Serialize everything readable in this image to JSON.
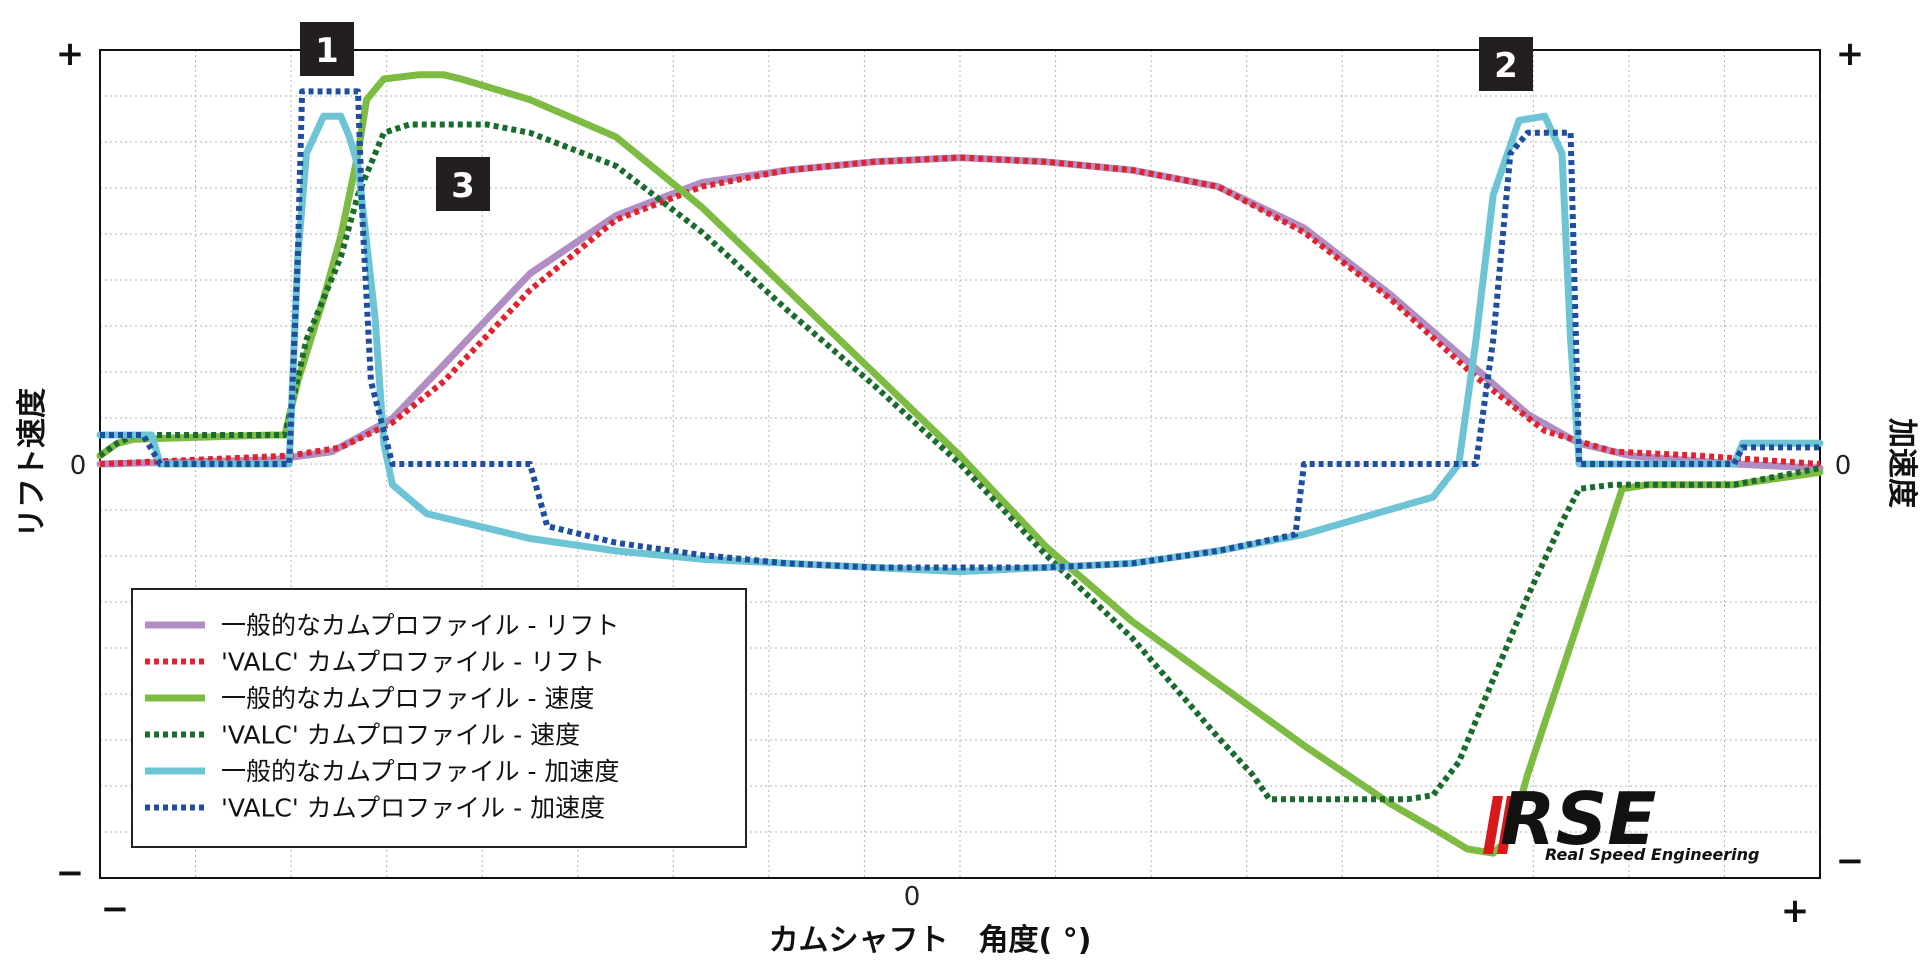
{
  "chart_data": {
    "type": "line",
    "xlabel": "カムシャフト　角度( °)",
    "ylabel_left": "リフト速度",
    "ylabel_right": "加速度",
    "x_ticks": [
      "0"
    ],
    "x_minus": "−",
    "x_plus": "+",
    "y_left_ticks": {
      "top": "+",
      "zero": "0",
      "bottom": "−"
    },
    "y_right_ticks": {
      "top": "+",
      "zero": "0",
      "bottom": "−"
    },
    "xlim": [
      -1,
      1
    ],
    "ylim": [
      -1,
      1
    ],
    "grid": true,
    "legend_position": "bottom-left",
    "annotations": [
      "1",
      "2",
      "3"
    ],
    "series": [
      {
        "name": "一般的なカムプロファイル - リフト",
        "color": "#b08ec4",
        "style": "solid",
        "points": [
          [
            -1,
            0.0
          ],
          [
            -0.8,
            0.01
          ],
          [
            -0.73,
            0.03
          ],
          [
            -0.66,
            0.11
          ],
          [
            -0.6,
            0.24
          ],
          [
            -0.5,
            0.46
          ],
          [
            -0.4,
            0.6
          ],
          [
            -0.3,
            0.68
          ],
          [
            -0.2,
            0.71
          ],
          [
            -0.1,
            0.73
          ],
          [
            0,
            0.74
          ],
          [
            0.1,
            0.73
          ],
          [
            0.2,
            0.71
          ],
          [
            0.3,
            0.67
          ],
          [
            0.4,
            0.57
          ],
          [
            0.5,
            0.41
          ],
          [
            0.6,
            0.23
          ],
          [
            0.66,
            0.12
          ],
          [
            0.72,
            0.05
          ],
          [
            0.78,
            0.02
          ],
          [
            0.9,
            0.0
          ],
          [
            1,
            -0.01
          ]
        ]
      },
      {
        "name": "'VALC' カムプロファイル - リフト",
        "color": "#e0232f",
        "style": "dotted",
        "points": [
          [
            -1,
            0.0
          ],
          [
            -0.78,
            0.02
          ],
          [
            -0.72,
            0.04
          ],
          [
            -0.66,
            0.1
          ],
          [
            -0.6,
            0.2
          ],
          [
            -0.5,
            0.42
          ],
          [
            -0.4,
            0.59
          ],
          [
            -0.3,
            0.67
          ],
          [
            -0.2,
            0.71
          ],
          [
            -0.1,
            0.73
          ],
          [
            0,
            0.74
          ],
          [
            0.1,
            0.73
          ],
          [
            0.2,
            0.71
          ],
          [
            0.3,
            0.67
          ],
          [
            0.4,
            0.56
          ],
          [
            0.5,
            0.4
          ],
          [
            0.6,
            0.21
          ],
          [
            0.68,
            0.08
          ],
          [
            0.76,
            0.03
          ],
          [
            0.86,
            0.02
          ],
          [
            1,
            0.0
          ]
        ]
      },
      {
        "name": "一般的なカムプロファイル - 速度",
        "color": "#7dbb42",
        "style": "solid",
        "points": [
          [
            -1,
            0.02
          ],
          [
            -0.98,
            0.05
          ],
          [
            -0.96,
            0.06
          ],
          [
            -0.8,
            0.07
          ],
          [
            -0.785,
            0.07
          ],
          [
            -0.77,
            0.2
          ],
          [
            -0.74,
            0.4
          ],
          [
            -0.72,
            0.55
          ],
          [
            -0.7,
            0.75
          ],
          [
            -0.69,
            0.88
          ],
          [
            -0.67,
            0.93
          ],
          [
            -0.63,
            0.94
          ],
          [
            -0.6,
            0.94
          ],
          [
            -0.58,
            0.93
          ],
          [
            -0.5,
            0.88
          ],
          [
            -0.4,
            0.79
          ],
          [
            -0.3,
            0.62
          ],
          [
            -0.2,
            0.42
          ],
          [
            -0.1,
            0.22
          ],
          [
            0,
            0.02
          ],
          [
            0.1,
            -0.2
          ],
          [
            0.2,
            -0.38
          ],
          [
            0.3,
            -0.53
          ],
          [
            0.4,
            -0.68
          ],
          [
            0.5,
            -0.82
          ],
          [
            0.55,
            -0.88
          ],
          [
            0.59,
            -0.93
          ],
          [
            0.62,
            -0.94
          ],
          [
            0.64,
            -0.9
          ],
          [
            0.66,
            -0.75
          ],
          [
            0.7,
            -0.5
          ],
          [
            0.74,
            -0.25
          ],
          [
            0.77,
            -0.06
          ],
          [
            0.8,
            -0.05
          ],
          [
            0.9,
            -0.05
          ],
          [
            1,
            -0.02
          ]
        ]
      },
      {
        "name": "'VALC' カムプロファイル - 速度",
        "color": "#1a6b2e",
        "style": "dotted",
        "points": [
          [
            -1,
            0.02
          ],
          [
            -0.98,
            0.05
          ],
          [
            -0.96,
            0.07
          ],
          [
            -0.8,
            0.07
          ],
          [
            -0.785,
            0.07
          ],
          [
            -0.76,
            0.3
          ],
          [
            -0.72,
            0.5
          ],
          [
            -0.7,
            0.65
          ],
          [
            -0.67,
            0.8
          ],
          [
            -0.64,
            0.82
          ],
          [
            -0.55,
            0.82
          ],
          [
            -0.5,
            0.8
          ],
          [
            -0.4,
            0.72
          ],
          [
            -0.3,
            0.56
          ],
          [
            -0.2,
            0.37
          ],
          [
            -0.1,
            0.19
          ],
          [
            0,
            0.0
          ],
          [
            0.1,
            -0.22
          ],
          [
            0.2,
            -0.42
          ],
          [
            0.3,
            -0.66
          ],
          [
            0.34,
            -0.75
          ],
          [
            0.36,
            -0.81
          ],
          [
            0.45,
            -0.81
          ],
          [
            0.52,
            -0.81
          ],
          [
            0.55,
            -0.8
          ],
          [
            0.58,
            -0.72
          ],
          [
            0.62,
            -0.52
          ],
          [
            0.66,
            -0.32
          ],
          [
            0.7,
            -0.14
          ],
          [
            0.72,
            -0.06
          ],
          [
            0.76,
            -0.05
          ],
          [
            0.9,
            -0.05
          ],
          [
            1,
            -0.01
          ]
        ]
      },
      {
        "name": "一般的なカムプロファイル - 加速度",
        "color": "#6cc4d4",
        "style": "solid",
        "points": [
          [
            -1,
            0.07
          ],
          [
            -0.94,
            0.07
          ],
          [
            -0.93,
            0.0
          ],
          [
            -0.78,
            0.0
          ],
          [
            -0.77,
            0.5
          ],
          [
            -0.76,
            0.75
          ],
          [
            -0.74,
            0.84
          ],
          [
            -0.72,
            0.84
          ],
          [
            -0.71,
            0.79
          ],
          [
            -0.7,
            0.72
          ],
          [
            -0.68,
            0.35
          ],
          [
            -0.67,
            0.05
          ],
          [
            -0.66,
            -0.05
          ],
          [
            -0.62,
            -0.12
          ],
          [
            -0.5,
            -0.18
          ],
          [
            -0.4,
            -0.21
          ],
          [
            -0.3,
            -0.23
          ],
          [
            -0.2,
            -0.24
          ],
          [
            -0.1,
            -0.25
          ],
          [
            0,
            -0.26
          ],
          [
            0.1,
            -0.25
          ],
          [
            0.2,
            -0.24
          ],
          [
            0.3,
            -0.21
          ],
          [
            0.4,
            -0.17
          ],
          [
            0.5,
            -0.11
          ],
          [
            0.55,
            -0.08
          ],
          [
            0.58,
            0.0
          ],
          [
            0.6,
            0.3
          ],
          [
            0.62,
            0.65
          ],
          [
            0.65,
            0.83
          ],
          [
            0.68,
            0.84
          ],
          [
            0.7,
            0.75
          ],
          [
            0.71,
            0.3
          ],
          [
            0.72,
            0.0
          ],
          [
            0.9,
            0.0
          ],
          [
            0.91,
            0.05
          ],
          [
            1,
            0.05
          ]
        ]
      },
      {
        "name": "'VALC' カムプロファイル - 加速度",
        "color": "#1f4e9e",
        "style": "dotted",
        "points": [
          [
            -1,
            0.07
          ],
          [
            -0.95,
            0.07
          ],
          [
            -0.93,
            0.0
          ],
          [
            -0.78,
            0.0
          ],
          [
            -0.77,
            0.5
          ],
          [
            -0.765,
            0.9
          ],
          [
            -0.74,
            0.9
          ],
          [
            -0.7,
            0.9
          ],
          [
            -0.695,
            0.6
          ],
          [
            -0.685,
            0.2
          ],
          [
            -0.66,
            0.0
          ],
          [
            -0.5,
            0.0
          ],
          [
            -0.48,
            -0.15
          ],
          [
            -0.4,
            -0.19
          ],
          [
            -0.3,
            -0.22
          ],
          [
            -0.2,
            -0.24
          ],
          [
            -0.1,
            -0.25
          ],
          [
            0,
            -0.25
          ],
          [
            0.1,
            -0.25
          ],
          [
            0.2,
            -0.24
          ],
          [
            0.3,
            -0.21
          ],
          [
            0.39,
            -0.17
          ],
          [
            0.4,
            0.0
          ],
          [
            0.6,
            0.0
          ],
          [
            0.62,
            0.3
          ],
          [
            0.64,
            0.75
          ],
          [
            0.66,
            0.8
          ],
          [
            0.71,
            0.8
          ],
          [
            0.72,
            0.0
          ],
          [
            0.9,
            0.0
          ],
          [
            0.91,
            0.04
          ],
          [
            1,
            0.04
          ]
        ]
      }
    ]
  },
  "legend": [
    {
      "label": "一般的なカムプロファイル - リフト",
      "color": "#b08ec4",
      "style": "solid"
    },
    {
      "label": "'VALC' カムプロファイル - リフト",
      "color": "#e0232f",
      "style": "dotted"
    },
    {
      "label": "一般的なカムプロファイル - 速度",
      "color": "#7dbb42",
      "style": "solid"
    },
    {
      "label": "'VALC' カムプロファイル - 速度",
      "color": "#1a6b2e",
      "style": "dotted"
    },
    {
      "label": "一般的なカムプロファイル - 加速度",
      "color": "#6cc4d4",
      "style": "solid"
    },
    {
      "label": "'VALC' カムプロファイル - 加速度",
      "color": "#1f4e9e",
      "style": "dotted"
    }
  ],
  "logo": {
    "text": "RSE",
    "subtitle": "Real Speed Engineering",
    "color_main": "#111111",
    "color_accent": "#d7191c"
  }
}
